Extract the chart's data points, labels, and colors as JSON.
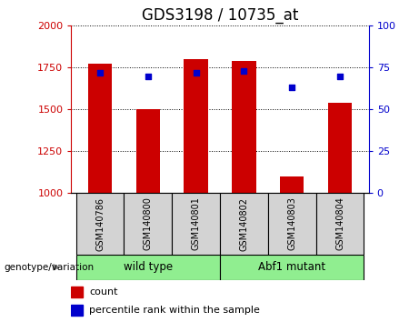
{
  "title": "GDS3198 / 10735_at",
  "samples": [
    "GSM140786",
    "GSM140800",
    "GSM140801",
    "GSM140802",
    "GSM140803",
    "GSM140804"
  ],
  "counts": [
    1775,
    1500,
    1800,
    1790,
    1100,
    1540
  ],
  "percentiles": [
    72,
    70,
    72,
    73,
    63,
    70
  ],
  "groups": [
    [
      "wild type",
      0,
      3
    ],
    [
      "Abf1 mutant",
      3,
      6
    ]
  ],
  "bar_color": "#CC0000",
  "dot_color": "#0000CC",
  "ylim_left": [
    1000,
    2000
  ],
  "ylim_right": [
    0,
    100
  ],
  "yticks_left": [
    1000,
    1250,
    1500,
    1750,
    2000
  ],
  "yticks_right": [
    0,
    25,
    50,
    75,
    100
  ],
  "left_tick_color": "#CC0000",
  "right_tick_color": "#0000CC",
  "title_fontsize": 12,
  "legend_count_label": "count",
  "legend_pct_label": "percentile rank within the sample",
  "group_label": "genotype/variation",
  "bar_width": 0.5,
  "bg_color": "#FFFFFF",
  "sample_bg": "#D3D3D3",
  "group_bg": "#90EE90"
}
